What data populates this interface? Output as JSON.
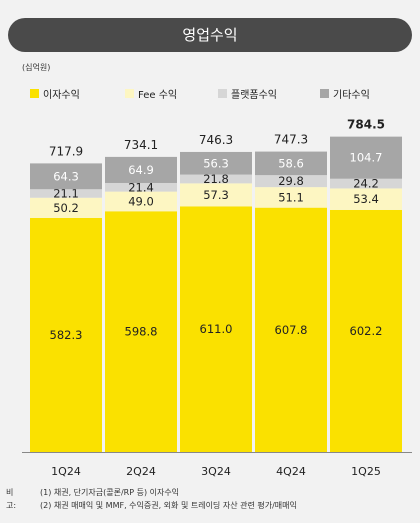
{
  "title": "영업수익",
  "unit_label": "(십억원)",
  "colors": {
    "interest": "#fae100",
    "fee": "#fdf6c2",
    "platform": "#d6d6d6",
    "other": "#a6a6a6",
    "title_bg": "#4a4a4a",
    "axis": "#888888"
  },
  "notes": {
    "label": "비고:",
    "lines": [
      "(1) 채권, 단기자금(콜론/RP 등) 이자수익",
      "(2) 채권 매매익 및 MMF, 수익증권, 외화 및 트레이딩 자산 관련 평가/매매익"
    ]
  },
  "chart_data": {
    "type": "bar",
    "stacked": true,
    "categories": [
      "1Q24",
      "2Q24",
      "3Q24",
      "4Q24",
      "1Q25"
    ],
    "series": [
      {
        "name": "이자수익",
        "key": "interest",
        "values": [
          582.3,
          598.8,
          611.0,
          607.8,
          602.2
        ]
      },
      {
        "name": "Fee 수익",
        "key": "fee",
        "values": [
          50.2,
          49.0,
          57.3,
          51.1,
          53.4
        ]
      },
      {
        "name": "플랫폼수익",
        "key": "platform",
        "values": [
          21.1,
          21.4,
          21.8,
          29.8,
          24.2
        ]
      },
      {
        "name": "기타수익",
        "key": "other",
        "values": [
          64.3,
          64.9,
          56.3,
          58.6,
          104.7
        ]
      }
    ],
    "totals": [
      "717.9",
      "734.1",
      "746.3",
      "747.3",
      "784.5"
    ],
    "highlight_total_index": 4,
    "legend_position": "top-left"
  }
}
